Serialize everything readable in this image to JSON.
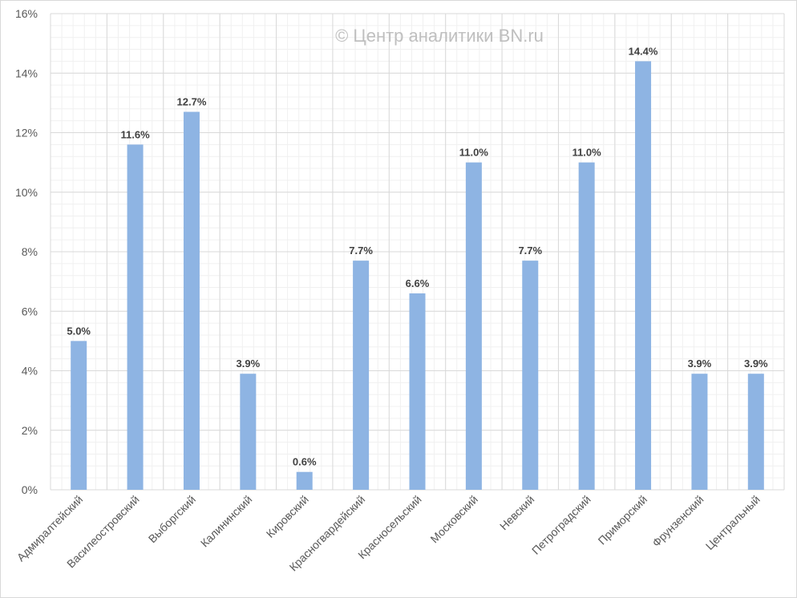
{
  "watermark": "© Центр аналитики BN.ru",
  "chart_data": {
    "type": "bar",
    "title": "",
    "xlabel": "",
    "ylabel": "",
    "categories": [
      "Адмиралтейский",
      "Василеостровский",
      "Выборгский",
      "Калининский",
      "Кировский",
      "Красногвардейский",
      "Красносельский",
      "Московский",
      "Невский",
      "Петроградский",
      "Приморский",
      "Фрунзенский",
      "Центральный"
    ],
    "values": [
      5.0,
      11.6,
      12.7,
      3.9,
      0.6,
      7.7,
      6.6,
      11.0,
      7.7,
      11.0,
      14.4,
      3.9,
      3.9
    ],
    "data_labels": [
      "5.0%",
      "11.6%",
      "12.7%",
      "3.9%",
      "0.6%",
      "7.7%",
      "6.6%",
      "11.0%",
      "7.7%",
      "11.0%",
      "14.4%",
      "3.9%",
      "3.9%"
    ],
    "ylim": [
      0,
      16
    ],
    "yticks": [
      0,
      2,
      4,
      6,
      8,
      10,
      12,
      14,
      16
    ],
    "ytick_labels": [
      "0%",
      "2%",
      "4%",
      "6%",
      "8%",
      "10%",
      "12%",
      "14%",
      "16%"
    ],
    "grid": true,
    "legend": "none",
    "colors": {
      "bar": "#8EB4E3",
      "grid_major": "#d9d9d9",
      "grid_minor": "#f0f0f0"
    }
  }
}
